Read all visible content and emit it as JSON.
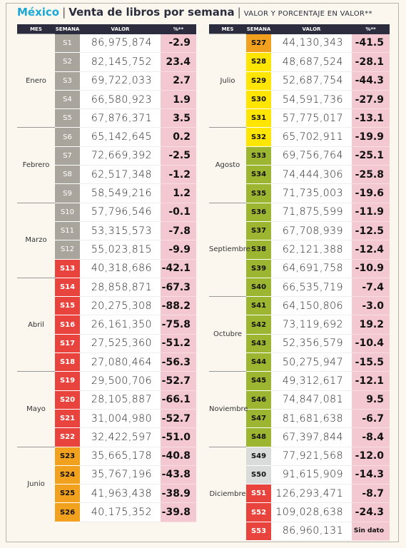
{
  "header": {
    "country": "México",
    "title": "Venta de libros por semana",
    "subtitle": "VALOR Y PORCENTAJE EN VALOR**"
  },
  "tables": [
    {
      "columns": [
        "MES",
        "SEMANA",
        "VALOR",
        "%**"
      ],
      "groups": [
        {
          "month": "Enero",
          "rows": [
            {
              "week": "S1",
              "value": "86,975,874",
              "pct": "-2.9",
              "color": "gray"
            },
            {
              "week": "S2",
              "value": "82,145,752",
              "pct": "23.4",
              "color": "gray"
            },
            {
              "week": "S3",
              "value": "69,722,033",
              "pct": "2.7",
              "color": "gray"
            },
            {
              "week": "S4",
              "value": "66,580,923",
              "pct": "1.9",
              "color": "gray"
            },
            {
              "week": "S5",
              "value": "67,876,371",
              "pct": "3.5",
              "color": "gray"
            }
          ]
        },
        {
          "month": "Febrero",
          "rows": [
            {
              "week": "S6",
              "value": "65,142,645",
              "pct": "0.2",
              "color": "gray"
            },
            {
              "week": "S7",
              "value": "72,669,392",
              "pct": "-2.5",
              "color": "gray"
            },
            {
              "week": "S8",
              "value": "62,517,348",
              "pct": "-1.2",
              "color": "gray"
            },
            {
              "week": "S9",
              "value": "58,549,216",
              "pct": "1.2",
              "color": "gray"
            }
          ]
        },
        {
          "month": "Marzo",
          "rows": [
            {
              "week": "S10",
              "value": "57,796,546",
              "pct": "-0.1",
              "color": "gray"
            },
            {
              "week": "S11",
              "value": "53,315,573",
              "pct": "-7.8",
              "color": "gray"
            },
            {
              "week": "S12",
              "value": "55,023,815",
              "pct": "-9.9",
              "color": "gray"
            },
            {
              "week": "S13",
              "value": "40,318,686",
              "pct": "-42.1",
              "color": "red"
            }
          ]
        },
        {
          "month": "Abril",
          "rows": [
            {
              "week": "S14",
              "value": "28,858,871",
              "pct": "-67.3",
              "color": "red"
            },
            {
              "week": "S15",
              "value": "20,275,308",
              "pct": "-88.2",
              "color": "red"
            },
            {
              "week": "S16",
              "value": "26,161,350",
              "pct": "-75.8",
              "color": "red"
            },
            {
              "week": "S17",
              "value": "27,525,360",
              "pct": "-51.2",
              "color": "red"
            },
            {
              "week": "S18",
              "value": "27,080,464",
              "pct": "-56.3",
              "color": "red"
            }
          ]
        },
        {
          "month": "Mayo",
          "rows": [
            {
              "week": "S19",
              "value": "29,500,706",
              "pct": "-52.7",
              "color": "red"
            },
            {
              "week": "S20",
              "value": "28,105,887",
              "pct": "-66.1",
              "color": "red"
            },
            {
              "week": "S21",
              "value": "31,004,980",
              "pct": "-52.7",
              "color": "red"
            },
            {
              "week": "S22",
              "value": "32,422,597",
              "pct": "-51.0",
              "color": "red"
            }
          ]
        },
        {
          "month": "Junio",
          "rows": [
            {
              "week": "S23",
              "value": "35,665,178",
              "pct": "-40.8",
              "color": "orange"
            },
            {
              "week": "S24",
              "value": "35,767,196",
              "pct": "-43.8",
              "color": "orange"
            },
            {
              "week": "S25",
              "value": "41,963,438",
              "pct": "-38.9",
              "color": "orange"
            },
            {
              "week": "S26",
              "value": "40,175,352",
              "pct": "-39.8",
              "color": "orange"
            }
          ]
        }
      ]
    },
    {
      "columns": [
        "MES",
        "SEMANA",
        "VALOR",
        "%**"
      ],
      "groups": [
        {
          "month": "Julio",
          "rows": [
            {
              "week": "S27",
              "value": "44,130,343",
              "pct": "-41.5",
              "color": "orange"
            },
            {
              "week": "S28",
              "value": "48,687,524",
              "pct": "-28.1",
              "color": "yellow"
            },
            {
              "week": "S29",
              "value": "52,687,754",
              "pct": "-44.3",
              "color": "yellow"
            },
            {
              "week": "S30",
              "value": "54,591,736",
              "pct": "-27.9",
              "color": "yellow"
            },
            {
              "week": "S31",
              "value": "57,775,017",
              "pct": "-13.1",
              "color": "yellow"
            }
          ]
        },
        {
          "month": "Agosto",
          "rows": [
            {
              "week": "S32",
              "value": "65,702,911",
              "pct": "-19.9",
              "color": "yellow"
            },
            {
              "week": "S33",
              "value": "69,756,764",
              "pct": "-25.1",
              "color": "green"
            },
            {
              "week": "S34",
              "value": "74,444,306",
              "pct": "-25.8",
              "color": "green"
            },
            {
              "week": "S35",
              "value": "71,735,003",
              "pct": "-19.6",
              "color": "green"
            }
          ]
        },
        {
          "month": "Septiembre",
          "rows": [
            {
              "week": "S36",
              "value": "71,875,599",
              "pct": "-11.9",
              "color": "green"
            },
            {
              "week": "S37",
              "value": "67,708,939",
              "pct": "-12.5",
              "color": "green"
            },
            {
              "week": "S38",
              "value": "62,121,388",
              "pct": "-12.4",
              "color": "green"
            },
            {
              "week": "S39",
              "value": "64,691,758",
              "pct": "-10.9",
              "color": "green"
            },
            {
              "week": "S40",
              "value": "66,535,719",
              "pct": "-7.4",
              "color": "green"
            }
          ]
        },
        {
          "month": "Octubre",
          "rows": [
            {
              "week": "S41",
              "value": "64,150,806",
              "pct": "-3.0",
              "color": "green"
            },
            {
              "week": "S42",
              "value": "73,119,692",
              "pct": "19.2",
              "color": "green"
            },
            {
              "week": "S43",
              "value": "52,356,579",
              "pct": "-10.4",
              "color": "green"
            },
            {
              "week": "S44",
              "value": "50,275,947",
              "pct": "-15.5",
              "color": "green"
            }
          ]
        },
        {
          "month": "Noviembre",
          "rows": [
            {
              "week": "S45",
              "value": "49,312,617",
              "pct": "-12.1",
              "color": "green"
            },
            {
              "week": "S46",
              "value": "74,847,081",
              "pct": "9.5",
              "color": "green"
            },
            {
              "week": "S47",
              "value": "81,681,638",
              "pct": "-6.7",
              "color": "green"
            },
            {
              "week": "S48",
              "value": "67,397,844",
              "pct": "-8.4",
              "color": "green"
            }
          ]
        },
        {
          "month": "Diciembre",
          "rows": [
            {
              "week": "S49",
              "value": "77,921,568",
              "pct": "-12.0",
              "color": "light"
            },
            {
              "week": "S50",
              "value": "91,615,909",
              "pct": "-14.3",
              "color": "light"
            },
            {
              "week": "S51",
              "value": "126,293,471",
              "pct": "-8.7",
              "color": "red"
            },
            {
              "week": "S52",
              "value": "109,028,638",
              "pct": "-24.3",
              "color": "red"
            },
            {
              "week": "S53",
              "value": "86,960,131",
              "pct": "Sin dato",
              "color": "red"
            }
          ]
        }
      ]
    }
  ]
}
